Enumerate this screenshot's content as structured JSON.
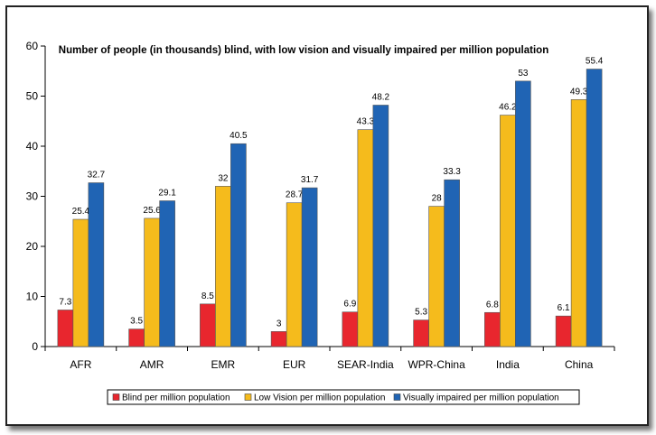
{
  "chart_data": {
    "type": "bar",
    "title": "Number of people (in thousands)  blind, with low vision and visually impaired per million population",
    "categories": [
      "AFR",
      "AMR",
      "EMR",
      "EUR",
      "SEAR-India",
      "WPR-China",
      "India",
      "China"
    ],
    "series": [
      {
        "name": "Blind per million population",
        "color": "#e8262e",
        "values": [
          7.3,
          3.5,
          8.5,
          3,
          6.9,
          5.3,
          6.8,
          6.1
        ],
        "labels": [
          "7.3",
          "3.5",
          "8.5",
          "3",
          "6.9",
          "5.3",
          "6.8",
          "6.1"
        ]
      },
      {
        "name": "Low Vision per million population",
        "color": "#f5bb1c",
        "values": [
          25.4,
          25.6,
          32,
          28.7,
          43.3,
          28,
          46.2,
          49.3
        ],
        "labels": [
          "25.4",
          "25.6",
          "32",
          "28.7",
          "43.3",
          "28",
          "46.2",
          "49.3"
        ]
      },
      {
        "name": "Visually impaired per million population",
        "color": "#2064b4",
        "values": [
          32.7,
          29.1,
          40.5,
          31.7,
          48.2,
          33.3,
          53,
          55.4
        ],
        "labels": [
          "32.7",
          "29.1",
          "40.5",
          "31.7",
          "48.2",
          "33.3",
          "53",
          "55.4"
        ]
      }
    ],
    "ylim": [
      0,
      60
    ],
    "yticks": [
      "0",
      "10",
      "20",
      "30",
      "40",
      "50",
      "60"
    ],
    "grid": false,
    "legend_position": "bottom"
  }
}
